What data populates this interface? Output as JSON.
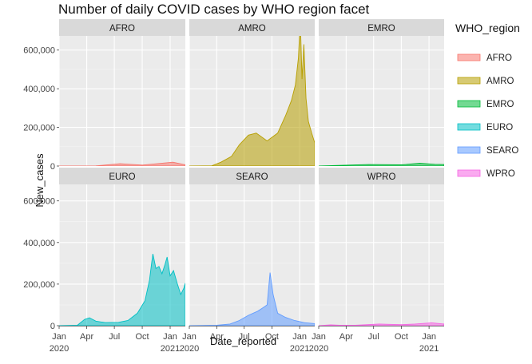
{
  "chart_data": {
    "type": "area",
    "title": "Number of daily COVID cases by WHO region facet",
    "xlabel": "Date_reported",
    "ylabel": "New_cases",
    "ylim": [
      0,
      760000
    ],
    "y_ticks": [
      0,
      200000,
      400000,
      600000
    ],
    "y_tick_labels": [
      "0",
      "200,000",
      "400,000",
      "600,000"
    ],
    "x_range": [
      "2020-01-01",
      "2021-02-20"
    ],
    "x_ticks": [
      "2020-01-01",
      "2020-04-01",
      "2020-07-01",
      "2020-10-01",
      "2021-01-01"
    ],
    "x_tick_labels": [
      "Jan\n2020",
      "Apr",
      "Jul",
      "Oct",
      "Jan\n2021"
    ],
    "grid": true,
    "legend": {
      "title": "WHO_region",
      "placement": "right"
    },
    "facets": [
      "AFRO",
      "AMRO",
      "EMRO",
      "EURO",
      "SEARO",
      "WPRO"
    ],
    "series": [
      {
        "name": "AFRO",
        "color": "#F8766D",
        "points": [
          [
            "2020-01-01",
            0
          ],
          [
            "2020-05-01",
            1000
          ],
          [
            "2020-07-20",
            12000
          ],
          [
            "2020-10-01",
            5000
          ],
          [
            "2021-01-10",
            20000
          ],
          [
            "2021-02-20",
            6000
          ]
        ]
      },
      {
        "name": "AMRO",
        "color": "#B79F00",
        "points": [
          [
            "2020-01-01",
            0
          ],
          [
            "2020-03-15",
            1000
          ],
          [
            "2020-04-15",
            20000
          ],
          [
            "2020-05-20",
            50000
          ],
          [
            "2020-06-15",
            110000
          ],
          [
            "2020-07-15",
            160000
          ],
          [
            "2020-08-10",
            170000
          ],
          [
            "2020-09-15",
            130000
          ],
          [
            "2020-10-20",
            170000
          ],
          [
            "2020-11-15",
            260000
          ],
          [
            "2020-12-05",
            340000
          ],
          [
            "2020-12-18",
            420000
          ],
          [
            "2020-12-28",
            560000
          ],
          [
            "2021-01-03",
            760000
          ],
          [
            "2021-01-09",
            450000
          ],
          [
            "2021-01-15",
            630000
          ],
          [
            "2021-01-22",
            350000
          ],
          [
            "2021-01-30",
            230000
          ],
          [
            "2021-02-10",
            170000
          ],
          [
            "2021-02-20",
            120000
          ]
        ]
      },
      {
        "name": "EMRO",
        "color": "#00BA38",
        "points": [
          [
            "2020-01-01",
            0
          ],
          [
            "2020-06-15",
            8000
          ],
          [
            "2020-10-01",
            6000
          ],
          [
            "2020-12-01",
            15000
          ],
          [
            "2021-01-20",
            9000
          ],
          [
            "2021-02-20",
            8000
          ]
        ]
      },
      {
        "name": "EURO",
        "color": "#00BFC4",
        "points": [
          [
            "2020-01-01",
            0
          ],
          [
            "2020-03-01",
            2000
          ],
          [
            "2020-03-25",
            30000
          ],
          [
            "2020-04-10",
            38000
          ],
          [
            "2020-05-01",
            22000
          ],
          [
            "2020-06-01",
            15000
          ],
          [
            "2020-07-15",
            16000
          ],
          [
            "2020-08-15",
            25000
          ],
          [
            "2020-09-15",
            60000
          ],
          [
            "2020-10-10",
            120000
          ],
          [
            "2020-10-25",
            220000
          ],
          [
            "2020-11-01",
            300000
          ],
          [
            "2020-11-05",
            345000
          ],
          [
            "2020-11-15",
            275000
          ],
          [
            "2020-11-25",
            285000
          ],
          [
            "2020-12-05",
            250000
          ],
          [
            "2020-12-15",
            295000
          ],
          [
            "2020-12-22",
            330000
          ],
          [
            "2021-01-01",
            240000
          ],
          [
            "2021-01-12",
            265000
          ],
          [
            "2021-01-25",
            200000
          ],
          [
            "2021-02-05",
            150000
          ],
          [
            "2021-02-15",
            180000
          ],
          [
            "2021-02-20",
            205000
          ]
        ]
      },
      {
        "name": "SEARO",
        "color": "#619CFF",
        "points": [
          [
            "2020-01-01",
            0
          ],
          [
            "2020-04-01",
            2000
          ],
          [
            "2020-05-15",
            8000
          ],
          [
            "2020-06-15",
            25000
          ],
          [
            "2020-07-15",
            50000
          ],
          [
            "2020-08-15",
            70000
          ],
          [
            "2020-09-05",
            90000
          ],
          [
            "2020-09-15",
            100000
          ],
          [
            "2020-09-25",
            255000
          ],
          [
            "2020-10-05",
            150000
          ],
          [
            "2020-10-20",
            60000
          ],
          [
            "2020-11-15",
            40000
          ],
          [
            "2020-12-15",
            25000
          ],
          [
            "2021-01-15",
            15000
          ],
          [
            "2021-02-20",
            10000
          ]
        ]
      },
      {
        "name": "WPRO",
        "color": "#F564E3",
        "points": [
          [
            "2020-01-01",
            0
          ],
          [
            "2020-02-10",
            4000
          ],
          [
            "2020-03-10",
            2000
          ],
          [
            "2020-05-01",
            2000
          ],
          [
            "2020-07-20",
            8000
          ],
          [
            "2020-08-10",
            7000
          ],
          [
            "2020-10-01",
            5000
          ],
          [
            "2020-11-15",
            8000
          ],
          [
            "2021-01-10",
            14000
          ],
          [
            "2021-02-20",
            8000
          ]
        ]
      }
    ]
  }
}
